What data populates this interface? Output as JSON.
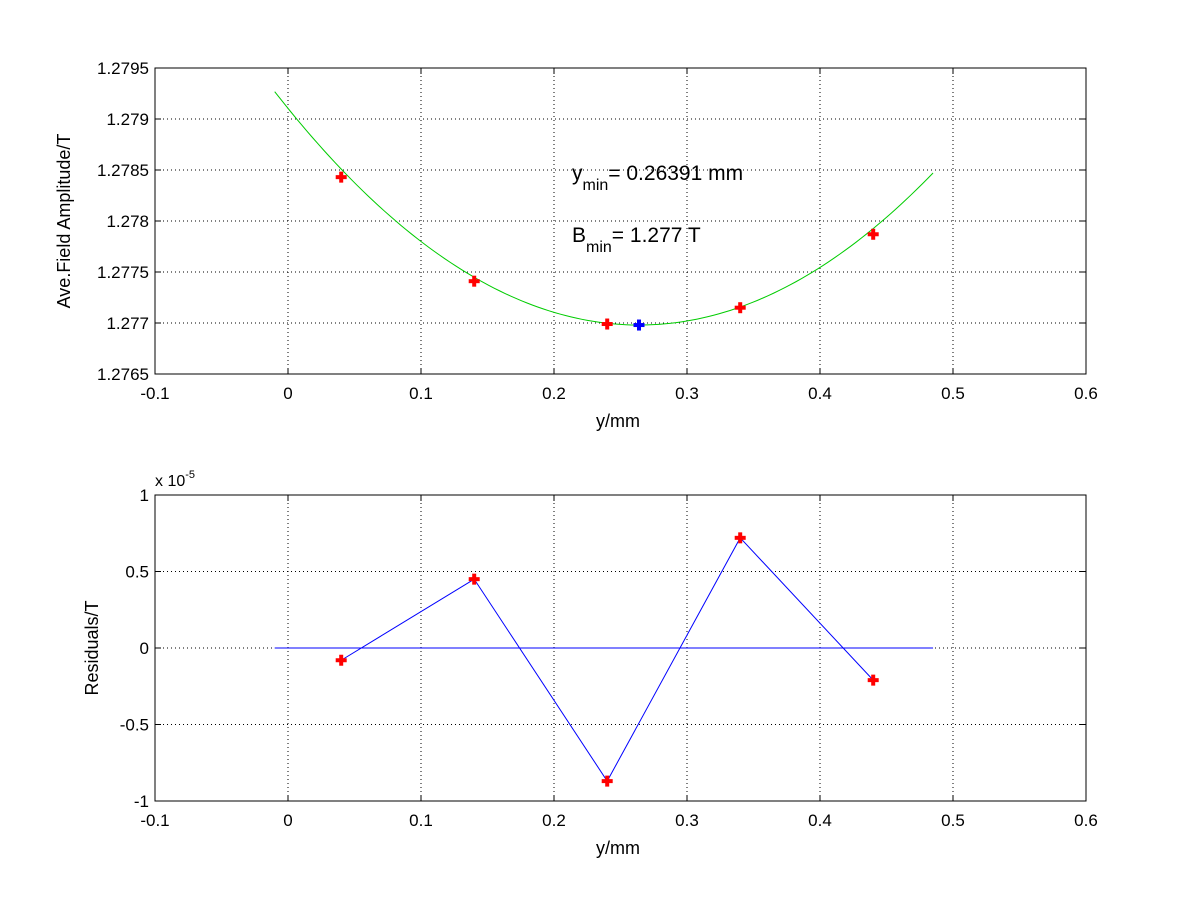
{
  "chart_data": [
    {
      "type": "scatter",
      "xlabel": "y/mm",
      "ylabel": "Ave.Field Amplitude/T",
      "xlim": [
        -0.1,
        0.6
      ],
      "ylim": [
        1.2765,
        1.2795
      ],
      "grid": true,
      "xticks": [
        "-0.1",
        "0",
        "0.1",
        "0.2",
        "0.3",
        "0.4",
        "0.5",
        "0.6"
      ],
      "yticks": [
        "1.2765",
        "1.277",
        "1.2775",
        "1.278",
        "1.2785",
        "1.279",
        "1.2795"
      ],
      "series": [
        {
          "marker": "plus",
          "color": "#ff0000",
          "x": [
            0.04,
            0.14,
            0.24,
            0.34,
            0.44
          ],
          "y": [
            1.27843,
            1.27741,
            1.27699,
            1.27715,
            1.27787
          ]
        },
        {
          "marker": "plus",
          "color": "#0000ff",
          "x": [
            0.26391
          ],
          "y": [
            1.27698
          ]
        },
        {
          "kind": "fit-curve",
          "color": "#00cc00",
          "x_range": [
            -0.01,
            0.485
          ],
          "parabola": {
            "vertex_x": 0.26391,
            "vertex_y": 1.27698,
            "curvature": 0.0305
          }
        }
      ],
      "annotations": {
        "ymin": {
          "main": "y",
          "sub": "min",
          "text": "= 0.26391 mm"
        },
        "bmin": {
          "main": "B",
          "sub": "min",
          "text": "= 1.277 T"
        }
      }
    },
    {
      "type": "line",
      "xlabel": "y/mm",
      "ylabel": "Residuals/T",
      "xlim": [
        -0.1,
        0.6
      ],
      "ylim": [
        -1,
        1
      ],
      "grid": true,
      "scale_label": {
        "base": "x 10",
        "exp": "-5"
      },
      "xticks": [
        "-0.1",
        "0",
        "0.1",
        "0.2",
        "0.3",
        "0.4",
        "0.5",
        "0.6"
      ],
      "yticks": [
        "-1",
        "-0.5",
        "0",
        "0.5",
        "1"
      ],
      "series": [
        {
          "marker": "plus",
          "color": "#ff0000",
          "line_color": "#0000ff",
          "x": [
            0.04,
            0.14,
            0.24,
            0.34,
            0.44
          ],
          "y": [
            -0.08,
            0.45,
            -0.87,
            0.72,
            -0.21
          ]
        },
        {
          "kind": "zero-line",
          "color": "#0000ff",
          "x": [
            -0.01,
            0.485
          ],
          "y": [
            0,
            0
          ]
        }
      ]
    }
  ]
}
